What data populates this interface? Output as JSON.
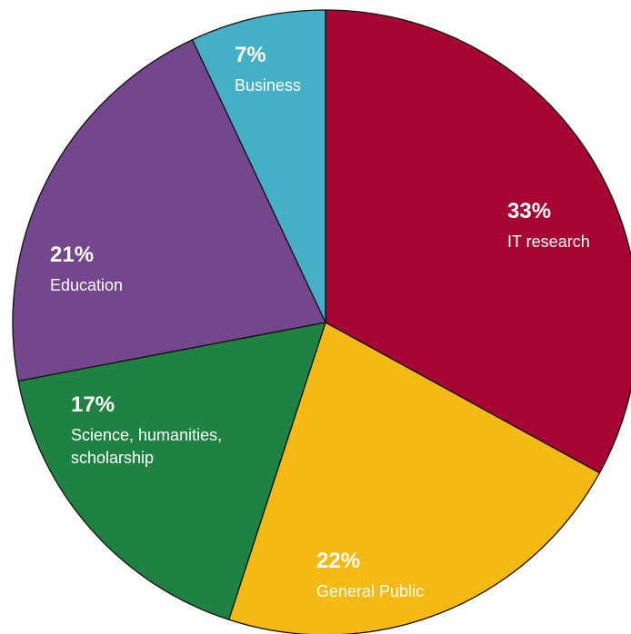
{
  "chart_data": {
    "type": "pie",
    "title": "",
    "start_angle_deg": 0,
    "direction": "clockwise",
    "legend": "none",
    "slices": [
      {
        "label_lines": [
          "IT research"
        ],
        "value": 33,
        "value_label": "33%",
        "color": "#a70532"
      },
      {
        "label_lines": [
          "General Public"
        ],
        "value": 22,
        "value_label": "22%",
        "color": "#f5b914"
      },
      {
        "label_lines": [
          "Science, humanities,",
          "scholarship"
        ],
        "value": 17,
        "value_label": "17%",
        "color": "#1f8243"
      },
      {
        "label_lines": [
          "Education"
        ],
        "value": 21,
        "value_label": "21%",
        "color": "#74478d"
      },
      {
        "label_lines": [
          "Business"
        ],
        "value": 7,
        "value_label": "7%",
        "color": "#46afc8"
      }
    ]
  }
}
